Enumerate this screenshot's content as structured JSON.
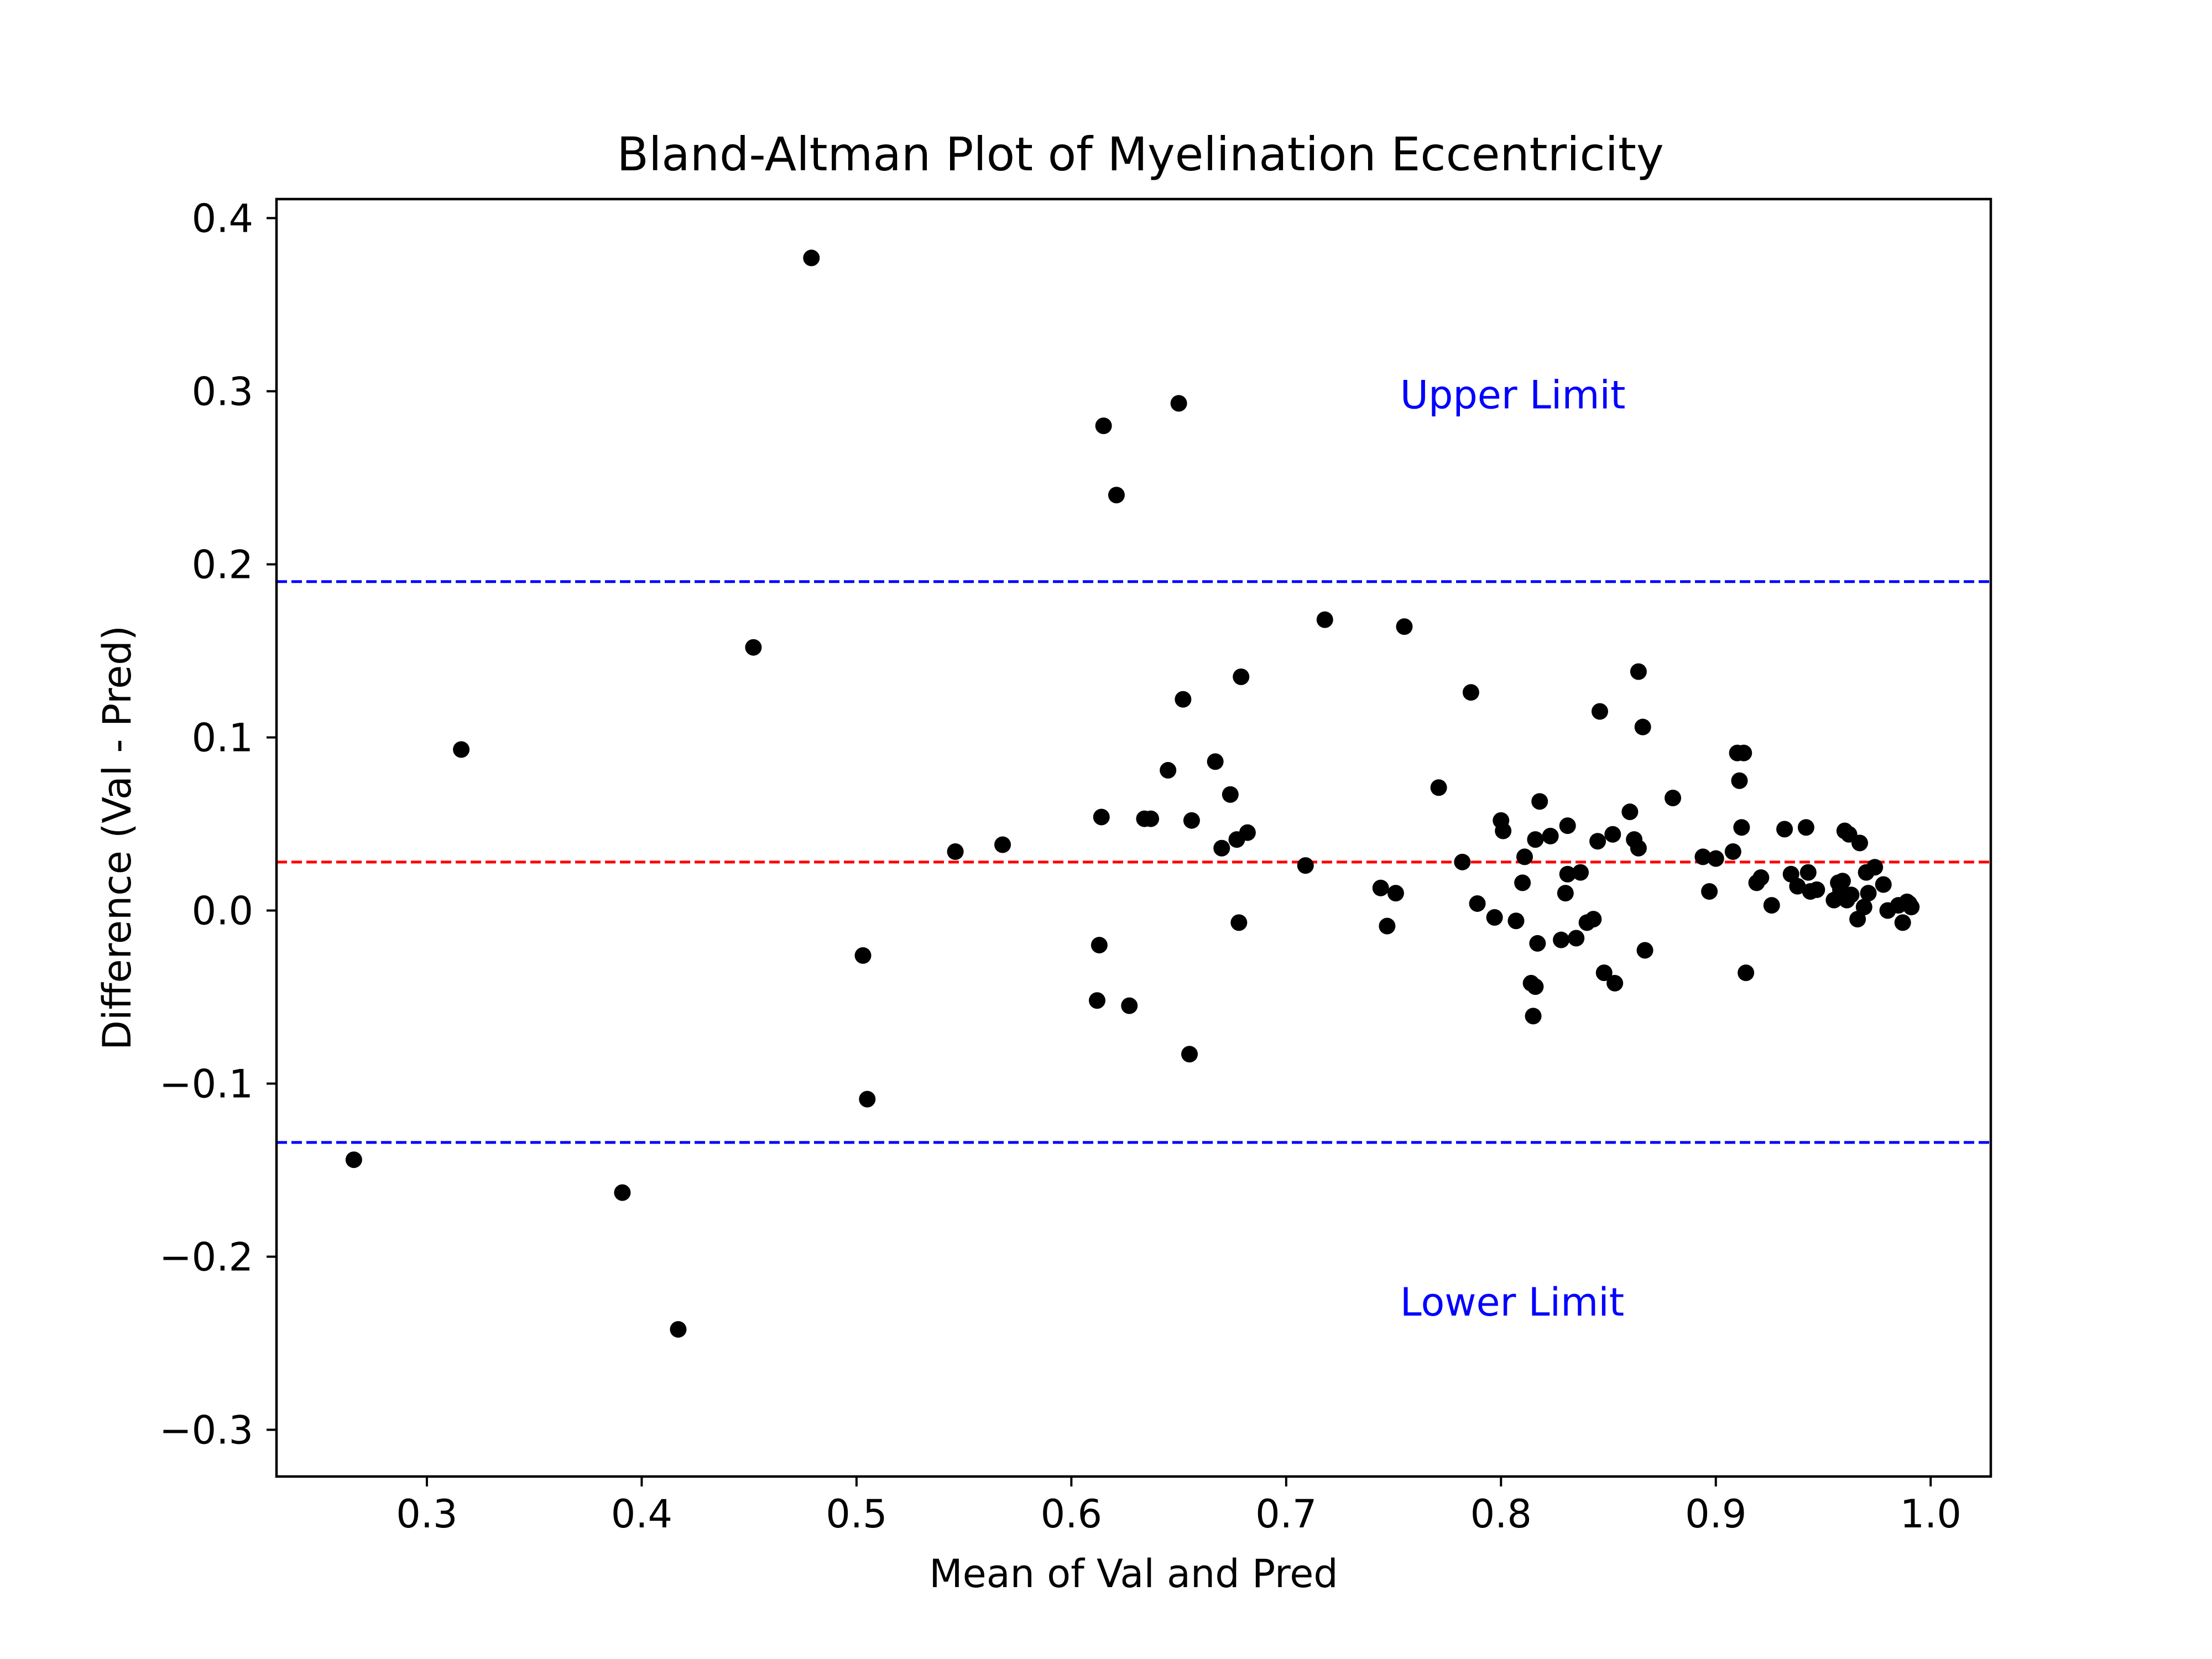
{
  "chart_data": {
    "type": "scatter",
    "title": "Bland-Altman Plot of Myelination Eccentricity",
    "xlabel": "Mean of Val and Pred",
    "ylabel": "Difference (Val - Pred)",
    "xlim": [
      0.23,
      1.028
    ],
    "ylim": [
      -0.327,
      0.411
    ],
    "x_ticks": [
      0.3,
      0.4,
      0.5,
      0.6,
      0.7,
      0.8,
      0.9,
      1.0
    ],
    "x_tick_labels": [
      "0.3",
      "0.4",
      "0.5",
      "0.6",
      "0.7",
      "0.8",
      "0.9",
      "1.0"
    ],
    "y_ticks": [
      -0.3,
      -0.2,
      -0.1,
      0.0,
      0.1,
      0.2,
      0.3,
      0.4
    ],
    "y_tick_labels": [
      "−0.3",
      "−0.2",
      "−0.1",
      "0.0",
      "0.1",
      "0.2",
      "0.3",
      "0.4"
    ],
    "grid": false,
    "point_color": "#000000",
    "reference_lines": [
      {
        "name": "upper",
        "y": 0.19,
        "color": "#0000ff",
        "style": "dashed"
      },
      {
        "name": "mean",
        "y": 0.028,
        "color": "#ff0000",
        "style": "dashed"
      },
      {
        "name": "lower",
        "y": -0.134,
        "color": "#0000ff",
        "style": "dashed"
      }
    ],
    "annotations": [
      {
        "text": "Upper Limit",
        "x": 0.753,
        "y": 0.29,
        "color": "#0000ff"
      },
      {
        "text": "Lower Limit",
        "x": 0.753,
        "y": -0.234,
        "color": "#0000ff"
      }
    ],
    "points": [
      [
        0.266,
        -0.144
      ],
      [
        0.316,
        0.093
      ],
      [
        0.391,
        -0.163
      ],
      [
        0.417,
        -0.242
      ],
      [
        0.452,
        0.152
      ],
      [
        0.479,
        0.377
      ],
      [
        0.503,
        -0.026
      ],
      [
        0.505,
        -0.109
      ],
      [
        0.546,
        0.034
      ],
      [
        0.568,
        0.038
      ],
      [
        0.612,
        -0.052
      ],
      [
        0.613,
        -0.02
      ],
      [
        0.614,
        0.054
      ],
      [
        0.615,
        0.28
      ],
      [
        0.621,
        0.24
      ],
      [
        0.627,
        -0.055
      ],
      [
        0.634,
        0.053
      ],
      [
        0.637,
        0.053
      ],
      [
        0.645,
        0.081
      ],
      [
        0.65,
        0.293
      ],
      [
        0.652,
        0.122
      ],
      [
        0.655,
        -0.083
      ],
      [
        0.656,
        0.052
      ],
      [
        0.667,
        0.086
      ],
      [
        0.67,
        0.036
      ],
      [
        0.674,
        0.067
      ],
      [
        0.677,
        0.041
      ],
      [
        0.678,
        -0.007
      ],
      [
        0.679,
        0.135
      ],
      [
        0.682,
        0.045
      ],
      [
        0.709,
        0.026
      ],
      [
        0.718,
        0.168
      ],
      [
        0.744,
        0.013
      ],
      [
        0.747,
        -0.009
      ],
      [
        0.751,
        0.01
      ],
      [
        0.755,
        0.164
      ],
      [
        0.771,
        0.071
      ],
      [
        0.782,
        0.028
      ],
      [
        0.786,
        0.126
      ],
      [
        0.789,
        0.004
      ],
      [
        0.797,
        -0.004
      ],
      [
        0.8,
        0.052
      ],
      [
        0.801,
        0.046
      ],
      [
        0.807,
        -0.006
      ],
      [
        0.81,
        0.016
      ],
      [
        0.811,
        0.031
      ],
      [
        0.814,
        -0.042
      ],
      [
        0.815,
        -0.061
      ],
      [
        0.816,
        0.041
      ],
      [
        0.816,
        -0.044
      ],
      [
        0.817,
        -0.019
      ],
      [
        0.818,
        0.063
      ],
      [
        0.823,
        0.043
      ],
      [
        0.828,
        -0.017
      ],
      [
        0.83,
        0.01
      ],
      [
        0.831,
        0.049
      ],
      [
        0.831,
        0.021
      ],
      [
        0.835,
        -0.016
      ],
      [
        0.837,
        0.022
      ],
      [
        0.84,
        -0.007
      ],
      [
        0.843,
        -0.005
      ],
      [
        0.845,
        0.04
      ],
      [
        0.846,
        0.115
      ],
      [
        0.848,
        -0.036
      ],
      [
        0.852,
        0.044
      ],
      [
        0.853,
        -0.042
      ],
      [
        0.86,
        0.057
      ],
      [
        0.862,
        0.041
      ],
      [
        0.864,
        0.138
      ],
      [
        0.864,
        0.036
      ],
      [
        0.866,
        0.106
      ],
      [
        0.867,
        -0.023
      ],
      [
        0.88,
        0.065
      ],
      [
        0.894,
        0.031
      ],
      [
        0.897,
        0.011
      ],
      [
        0.9,
        0.03
      ],
      [
        0.908,
        0.034
      ],
      [
        0.91,
        0.091
      ],
      [
        0.911,
        0.075
      ],
      [
        0.912,
        0.048
      ],
      [
        0.913,
        0.091
      ],
      [
        0.914,
        -0.036
      ],
      [
        0.919,
        0.016
      ],
      [
        0.921,
        0.019
      ],
      [
        0.926,
        0.003
      ],
      [
        0.932,
        0.047
      ],
      [
        0.935,
        0.021
      ],
      [
        0.938,
        0.014
      ],
      [
        0.942,
        0.048
      ],
      [
        0.943,
        0.022
      ],
      [
        0.944,
        0.011
      ],
      [
        0.947,
        0.012
      ],
      [
        0.955,
        0.006
      ],
      [
        0.957,
        0.016
      ],
      [
        0.958,
        0.012
      ],
      [
        0.959,
        0.017
      ],
      [
        0.96,
        0.046
      ],
      [
        0.961,
        0.006
      ],
      [
        0.962,
        0.044
      ],
      [
        0.963,
        0.009
      ],
      [
        0.966,
        -0.005
      ],
      [
        0.967,
        0.039
      ],
      [
        0.969,
        0.002
      ],
      [
        0.97,
        0.022
      ],
      [
        0.971,
        0.01
      ],
      [
        0.974,
        0.025
      ],
      [
        0.978,
        0.015
      ],
      [
        0.98,
        0.0
      ],
      [
        0.985,
        0.003
      ],
      [
        0.987,
        -0.007
      ],
      [
        0.989,
        0.005
      ],
      [
        0.99,
        0.004
      ],
      [
        0.991,
        0.002
      ]
    ]
  }
}
